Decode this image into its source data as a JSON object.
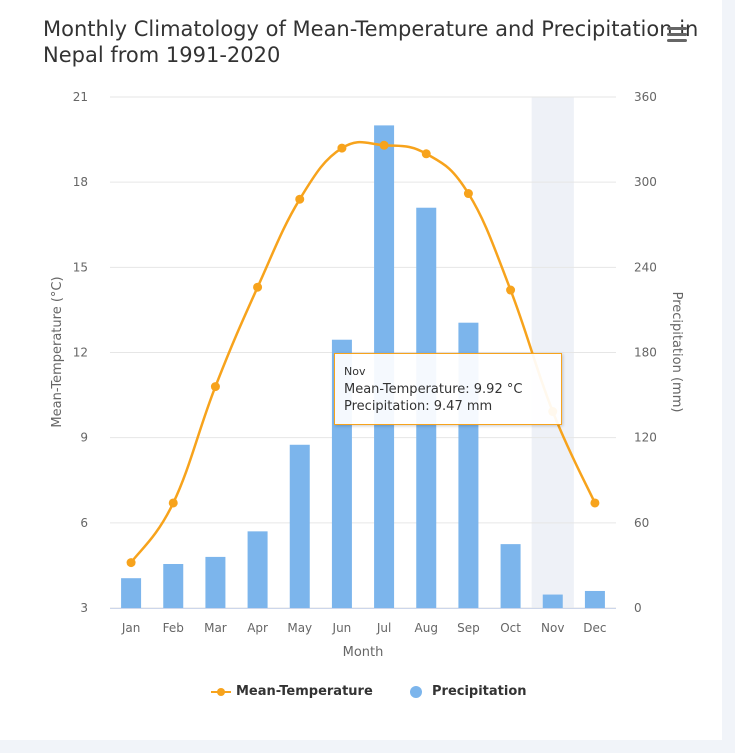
{
  "title": "Monthly Climatology of Mean-Temperature and Precipitation in Nepal from 1991-2020",
  "menu_icon": "hamburger-menu-icon",
  "colors": {
    "temperature": "#f7a31c",
    "precipitation": "#7cb5ec",
    "hover_band": "#eef1f7",
    "background": "#f1f4f9"
  },
  "chart_data": {
    "type": "bar",
    "title": "Monthly Climatology of Mean-Temperature and Precipitation in Nepal from 1991-2020",
    "xlabel": "Month",
    "ylabel_left": "Mean-Temperature (°C)",
    "ylabel_right": "Precipitation (mm)",
    "categories": [
      "Jan",
      "Feb",
      "Mar",
      "Apr",
      "May",
      "Jun",
      "Jul",
      "Aug",
      "Sep",
      "Oct",
      "Nov",
      "Dec"
    ],
    "y_left": {
      "min": 3,
      "max": 21,
      "ticks": [
        "3",
        "6",
        "9",
        "12",
        "15",
        "18",
        "21"
      ]
    },
    "y_right": {
      "min": 0,
      "max": 360,
      "ticks": [
        "0",
        "60",
        "120",
        "180",
        "240",
        "300",
        "360"
      ]
    },
    "grid": true,
    "legend_position": "bottom-center",
    "series": [
      {
        "name": "Mean-Temperature",
        "type": "line",
        "axis": "left",
        "values": [
          4.6,
          6.7,
          10.8,
          14.3,
          17.4,
          19.2,
          19.3,
          19.0,
          17.6,
          14.2,
          9.92,
          6.7
        ]
      },
      {
        "name": "Precipitation",
        "type": "bar",
        "axis": "right",
        "values": [
          21,
          31,
          36,
          54,
          115,
          189,
          340,
          282,
          201,
          45,
          9.47,
          12
        ]
      }
    ],
    "highlighted_category": "Nov"
  },
  "tooltip": {
    "header": "Nov",
    "temperature_line": "Mean-Temperature: 9.92 °C",
    "precipitation_line": "Precipitation: 9.47 mm"
  },
  "legend": {
    "temperature_label": "Mean-Temperature",
    "precipitation_label": "Precipitation"
  }
}
